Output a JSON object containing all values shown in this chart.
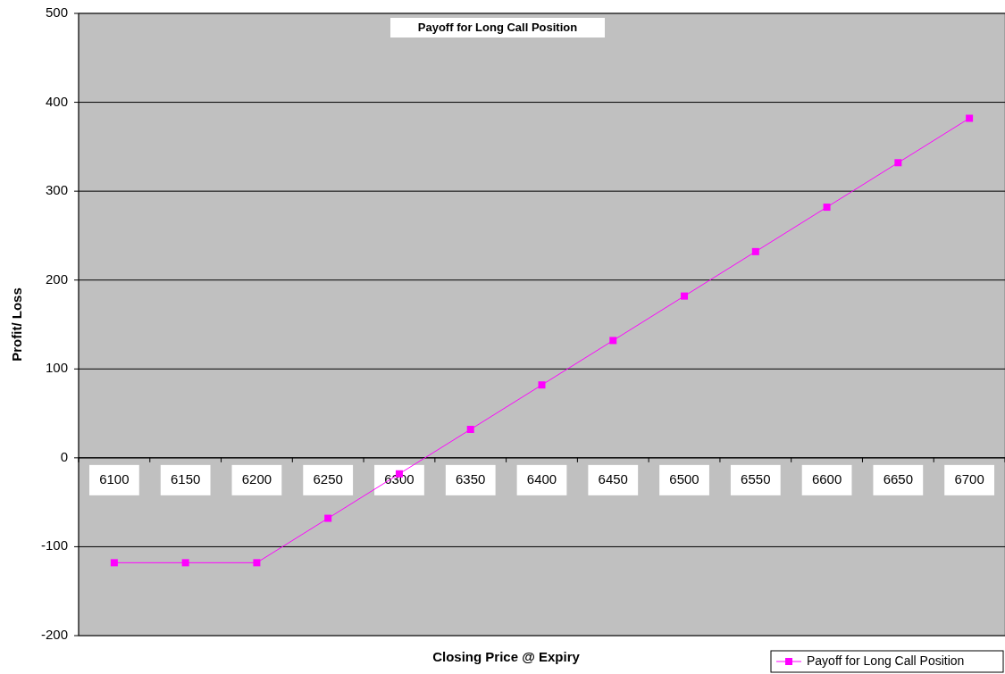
{
  "chart_data": {
    "type": "line",
    "title": "Payoff for Long Call Position",
    "xlabel": "Closing Price @ Expiry",
    "ylabel": "Profit/ Loss",
    "categories": [
      "6100",
      "6150",
      "6200",
      "6250",
      "6300",
      "6350",
      "6400",
      "6450",
      "6500",
      "6550",
      "6600",
      "6650",
      "6700"
    ],
    "series": [
      {
        "name": "Payoff for Long Call Position",
        "color": "#ff00ff",
        "values": [
          -118,
          -118,
          -118,
          -68,
          -18,
          32,
          82,
          132,
          182,
          232,
          282,
          332,
          382
        ]
      }
    ],
    "ylim": [
      -200,
      500
    ],
    "yticks": [
      -200,
      -100,
      0,
      100,
      200,
      300,
      400,
      500
    ],
    "grid": "y",
    "legend": "bottom right",
    "marker": "square",
    "line_style": "solid"
  }
}
